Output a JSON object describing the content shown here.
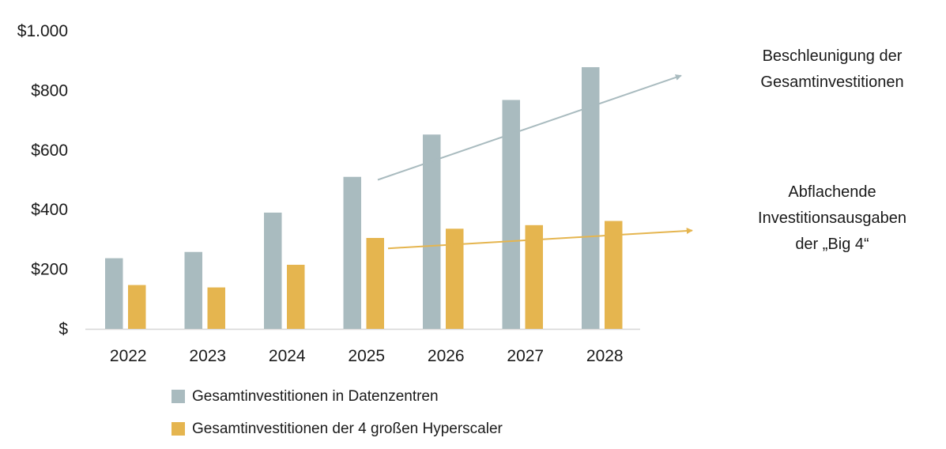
{
  "chart_data": {
    "type": "bar",
    "categories": [
      "2022",
      "2023",
      "2024",
      "2025",
      "2026",
      "2027",
      "2028"
    ],
    "series": [
      {
        "name": "Gesamtinvestitionen in Datenzentren",
        "color": "#a9bbbf",
        "values": [
          237,
          258,
          390,
          510,
          652,
          768,
          878
        ]
      },
      {
        "name": "Gesamtinvestitionen der 4 großen Hyperscaler",
        "color": "#e5b54f",
        "values": [
          147,
          139,
          215,
          305,
          336,
          348,
          362
        ]
      }
    ],
    "yaxis": {
      "range": [
        0,
        1000
      ],
      "ticks": [
        0,
        200,
        400,
        600,
        800,
        1000
      ],
      "tick_labels": [
        "$",
        "$200",
        "$400",
        "$600",
        "$800",
        "$1.000"
      ]
    },
    "legend": {
      "position": "bottom",
      "items": [
        "Gesamtinvestitionen in Datenzentren",
        "Gesamtinvestitionen der 4 großen Hyperscaler"
      ]
    },
    "annotations": [
      {
        "lines": [
          "Beschleunigung der",
          "Gesamtinvestitionen"
        ],
        "arrow_color": "#a9bbbf",
        "arrow_from": {
          "category": "2025",
          "value": 500
        },
        "arrow_to": {
          "category": "2029",
          "value": 850
        }
      },
      {
        "lines": [
          "Abflachende",
          "Investitionsausgaben",
          "der „Big 4“"
        ],
        "arrow_color": "#e5b54f",
        "arrow_from": {
          "category": "2025",
          "value": 270
        },
        "arrow_to": {
          "category": "2029",
          "value": 330
        }
      }
    ],
    "grid": false
  }
}
